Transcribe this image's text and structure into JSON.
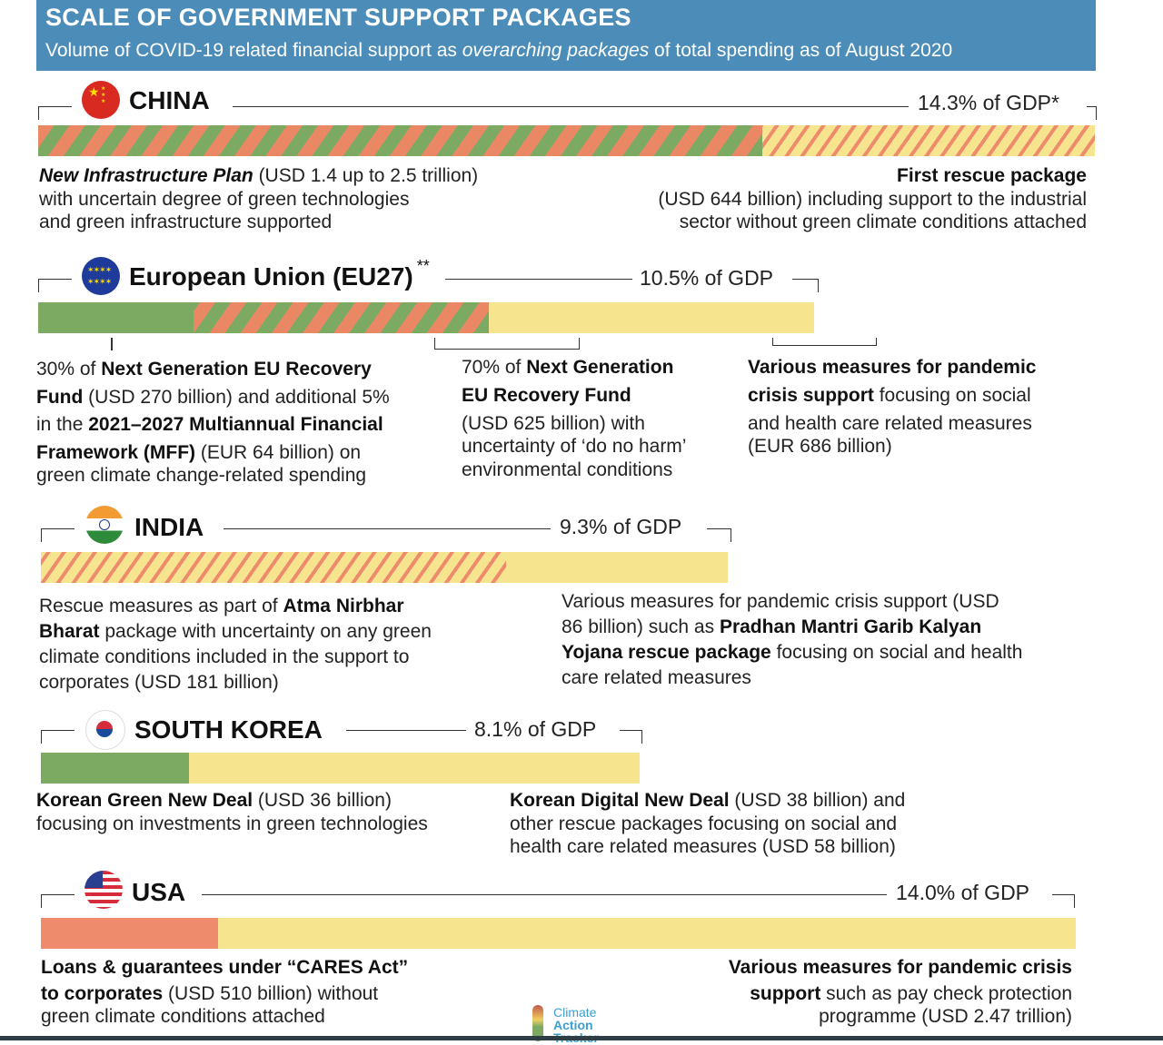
{
  "header": {
    "title": "SCALE OF GOVERNMENT SUPPORT PACKAGES",
    "subtitle_pre": "Volume of COVID-19 related financial support as ",
    "subtitle_em": "overarching packages",
    "subtitle_post": " of total spending as of August 2020"
  },
  "countries": [
    {
      "name": "CHINA",
      "gdp_label": "14.3% of GDP*",
      "left": {
        "b1": "New Infrastructure Plan",
        "t1": " (USD 1.4 up to 2.5 trillion)",
        "t2": "with uncertain degree of green technologies",
        "t3": "and green infrastructure supported"
      },
      "right": {
        "b1": "First rescue package",
        "t2": "(USD 644 billion) including support to the industrial",
        "t3": "sector without green climate conditions attached"
      }
    },
    {
      "name": "European Union (EU27)",
      "sup": "**",
      "gdp_label": "10.5% of GDP",
      "c1": {
        "t1": "30% of ",
        "b1": "Next Generation EU Recovery",
        "b2": "Fund",
        "t2": " (USD 270 billion) and additional 5%",
        "t3": "in the ",
        "b3": "2021–2027 Multiannual Financial",
        "b4": "Framework (MFF)",
        "t4": " (EUR 64 billion) on",
        "t5": "green climate change-related spending"
      },
      "c2": {
        "t1": "70% of ",
        "b1": "Next Generation",
        "b2": "EU Recovery Fund",
        "t3": "(USD 625 billion) with",
        "t4": "uncertainty of ‘do no harm’",
        "t5": "environmental conditions"
      },
      "c3": {
        "b1": "Various measures for pandemic",
        "b2": "crisis support",
        "t2": " focusing on social",
        "t3": "and health care related measures",
        "t4": "(EUR 686 billion)"
      }
    },
    {
      "name": "INDIA",
      "gdp_label": "9.3% of GDP",
      "left": {
        "t1": "Rescue measures as part of ",
        "b1": "Atma Nirbhar",
        "b2": "Bharat",
        "t2": " package with uncertainty on any green",
        "t3": "climate conditions included in the support to",
        "t4": "corporates (USD 181 billion)"
      },
      "right": {
        "t1": "Various measures for pandemic crisis support (USD",
        "t2": "86 billion) such as ",
        "b2": "Pradhan Mantri Garib Kalyan",
        "b3": "Yojana rescue package",
        "t3": " focusing on social and health",
        "t4": "care related measures"
      }
    },
    {
      "name": "SOUTH KOREA",
      "gdp_label": "8.1% of GDP",
      "left": {
        "b1": "Korean Green New Deal",
        "t1": " (USD 36 billion)",
        "t2": "focusing on investments in green technologies"
      },
      "right": {
        "b1": "Korean Digital New Deal",
        "t1": " (USD 38 billion) and",
        "t2": "other rescue packages focusing on social and",
        "t3": "health care related measures (USD 58 billion)"
      }
    },
    {
      "name": "USA",
      "gdp_label": "14.0% of GDP",
      "left": {
        "b1": "Loans & guarantees under “CARES Act”",
        "b2": "to corporates",
        "t2": " (USD 510 billion) without",
        "t3": "green climate conditions attached"
      },
      "right": {
        "b1": "Various measures for pandemic crisis",
        "b2": "support",
        "t2": " such as pay check protection",
        "t3": "programme (USD 2.47 trillion)"
      }
    }
  ],
  "logo": {
    "line1": "Climate",
    "line2": "Action",
    "line3": "Tracker"
  },
  "chart_data": {
    "type": "bar",
    "title": "SCALE OF GOVERNMENT SUPPORT PACKAGES",
    "unit": "% of GDP",
    "colors": {
      "green": "#7caa62",
      "red": "#ee8b6c",
      "yellow": "#f6e48f"
    },
    "categories": [
      "China",
      "European Union (EU27)",
      "India",
      "South Korea",
      "USA"
    ],
    "totals": [
      14.3,
      10.5,
      9.3,
      8.1,
      14.0
    ],
    "segments": [
      [
        {
          "type": "green-red-striped",
          "value": 9.8
        },
        {
          "type": "yellow-red-striped",
          "value": 4.5
        }
      ],
      [
        {
          "type": "green",
          "value": 2.1
        },
        {
          "type": "green-red-striped",
          "value": 4.0
        },
        {
          "type": "yellow",
          "value": 4.4
        }
      ],
      [
        {
          "type": "yellow-red-striped",
          "value": 6.3
        },
        {
          "type": "yellow",
          "value": 3.0
        }
      ],
      [
        {
          "type": "green",
          "value": 2.0
        },
        {
          "type": "yellow",
          "value": 6.1
        }
      ],
      [
        {
          "type": "red",
          "value": 2.4
        },
        {
          "type": "yellow",
          "value": 11.6
        }
      ]
    ]
  }
}
